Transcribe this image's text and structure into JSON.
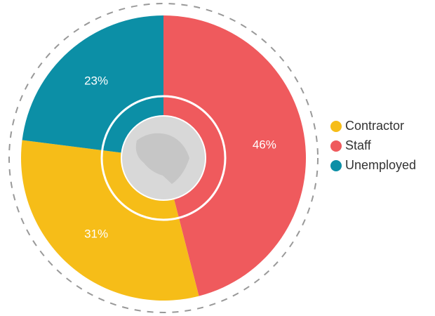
{
  "chart_data": {
    "type": "donut",
    "categories": [
      "Staff",
      "Contractor",
      "Unemployed"
    ],
    "values": [
      46,
      31,
      23
    ],
    "value_labels": [
      "46%",
      "31%",
      "23%"
    ],
    "colors": [
      "#ef5a5d",
      "#f6bd18",
      "#0c8fa6"
    ]
  }
}
